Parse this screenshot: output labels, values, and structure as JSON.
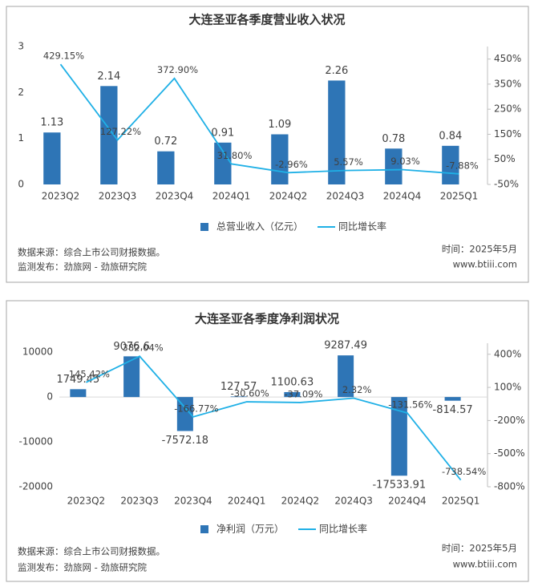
{
  "chart_data": [
    {
      "type": "bar",
      "title": "大连圣亚各季度营业收入状况",
      "categories": [
        "2023Q2",
        "2023Q3",
        "2023Q4",
        "2024Q1",
        "2024Q2",
        "2024Q3",
        "2024Q4",
        "2025Q1"
      ],
      "series": [
        {
          "name": "总营业收入（亿元）",
          "type": "bar",
          "color": "#2e75b6",
          "values": [
            1.13,
            2.14,
            0.72,
            0.91,
            1.09,
            2.26,
            0.78,
            0.84
          ]
        },
        {
          "name": "同比增长率",
          "type": "line",
          "axis": "y2",
          "color": "#1fb0e6",
          "values": [
            429.15,
            127.22,
            372.9,
            31.8,
            -2.96,
            5.57,
            9.03,
            -7.88
          ],
          "value_labels": [
            "429.15%",
            "127.22%",
            "372.90%",
            "31.80%",
            "-2.96%",
            "5.57%",
            "9.03%",
            "-7.88%"
          ]
        }
      ],
      "ylim": [
        0,
        3
      ],
      "yticks": [
        0,
        1,
        2,
        3
      ],
      "y2lim": [
        -50,
        500
      ],
      "y2ticks": [
        {
          "value": -50,
          "label": "-50%"
        },
        {
          "value": 50,
          "label": "50%"
        },
        {
          "value": 150,
          "label": "150%"
        },
        {
          "value": 250,
          "label": "250%"
        },
        {
          "value": 350,
          "label": "350%"
        },
        {
          "value": 450,
          "label": "450%"
        }
      ],
      "source": "数据来源：综合上市公司财报数据。",
      "publisher": "监测发布：劲旅网 - 劲旅研究院",
      "date": "时间：2025年5月",
      "website": "www.btiii.com"
    },
    {
      "type": "bar",
      "title": "大连圣亚各季度净利润状况",
      "categories": [
        "2023Q2",
        "2023Q3",
        "2023Q4",
        "2024Q1",
        "2024Q2",
        "2024Q3",
        "2024Q4",
        "2025Q1"
      ],
      "series": [
        {
          "name": "净利润（万元）",
          "type": "bar",
          "color": "#2e75b6",
          "values": [
            1749.45,
            9076.6,
            -7572.18,
            127.57,
            1100.63,
            9287.49,
            -17533.91,
            -814.57
          ]
        },
        {
          "name": "同比增长率",
          "type": "line",
          "axis": "y2",
          "color": "#1fb0e6",
          "values": [
            145.42,
            382.04,
            -166.77,
            -30.6,
            -37.09,
            2.32,
            -131.56,
            -738.54
          ],
          "value_labels": [
            "145.42%",
            "382.04%",
            "-166.77%",
            "-30.60%",
            "-37.09%",
            "2.32%",
            "-131.56%",
            "-738.54%"
          ]
        }
      ],
      "ylim": [
        -20000,
        12000
      ],
      "yticks": [
        -20000,
        -10000,
        0,
        10000
      ],
      "y2lim": [
        -800,
        500
      ],
      "y2ticks": [
        {
          "value": -800,
          "label": "-800%"
        },
        {
          "value": -500,
          "label": "-500%"
        },
        {
          "value": -200,
          "label": "-200%"
        },
        {
          "value": 100,
          "label": "100%"
        },
        {
          "value": 400,
          "label": "400%"
        }
      ],
      "source": "数据来源：综合上市公司财报数据。",
      "publisher": "监测发布：劲旅网 - 劲旅研究院",
      "date": "时间：2025年5月",
      "website": "www.btiii.com"
    }
  ]
}
